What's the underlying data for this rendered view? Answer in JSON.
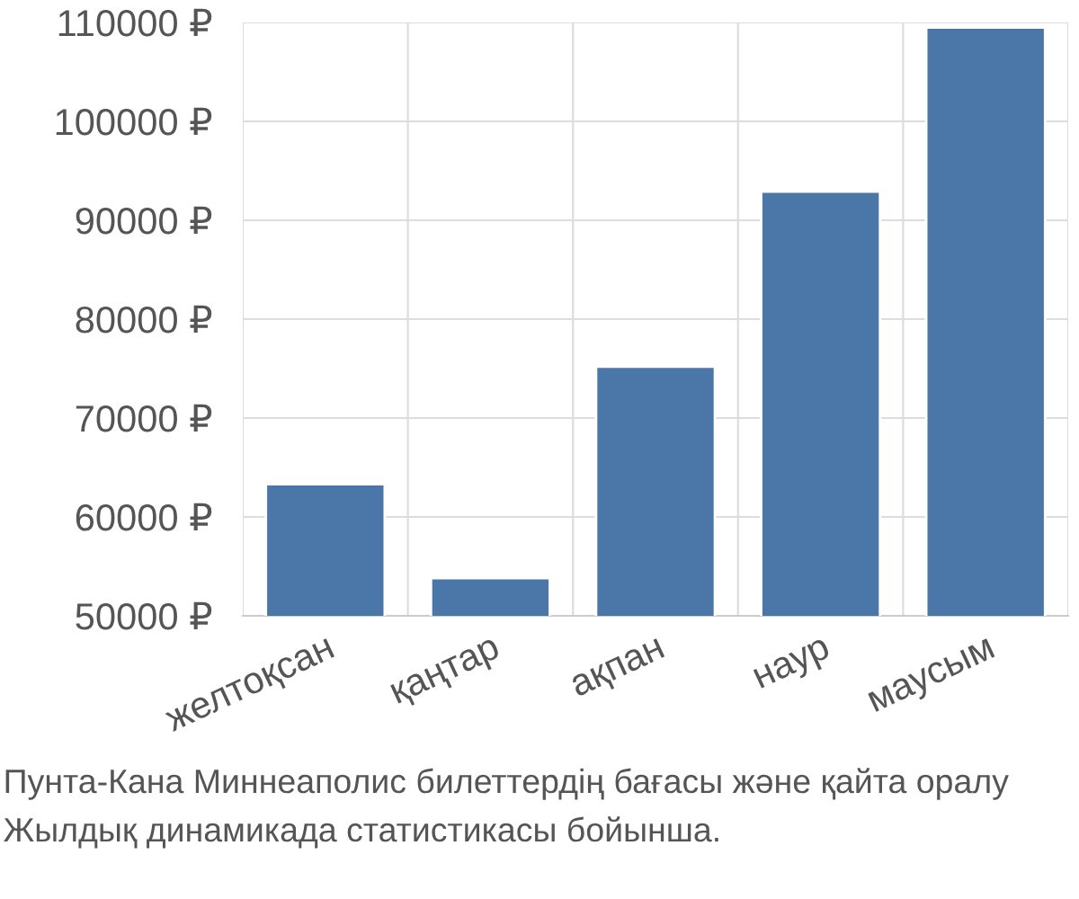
{
  "chart_data": {
    "type": "bar",
    "categories": [
      "желтоқсан",
      "қаңтар",
      "ақпан",
      "наур",
      "маусым"
    ],
    "values": [
      63300,
      53800,
      75200,
      92900,
      109500
    ],
    "color": "#4a76a8",
    "ylim": [
      50000,
      110000
    ],
    "yticks": [
      {
        "value": 50000,
        "label": "50000 ₽"
      },
      {
        "value": 60000,
        "label": "60000 ₽"
      },
      {
        "value": 70000,
        "label": "70000 ₽"
      },
      {
        "value": 80000,
        "label": "80000 ₽"
      },
      {
        "value": 90000,
        "label": "90000 ₽"
      },
      {
        "value": 100000,
        "label": "100000 ₽"
      },
      {
        "value": 110000,
        "label": "110000 ₽"
      }
    ],
    "grid": true,
    "annotations": [
      "Пунта-Кана Миннеаполис билеттердің бағасы және қайта оралу",
      "Жылдық динамикада статистикасы бойынша."
    ]
  }
}
